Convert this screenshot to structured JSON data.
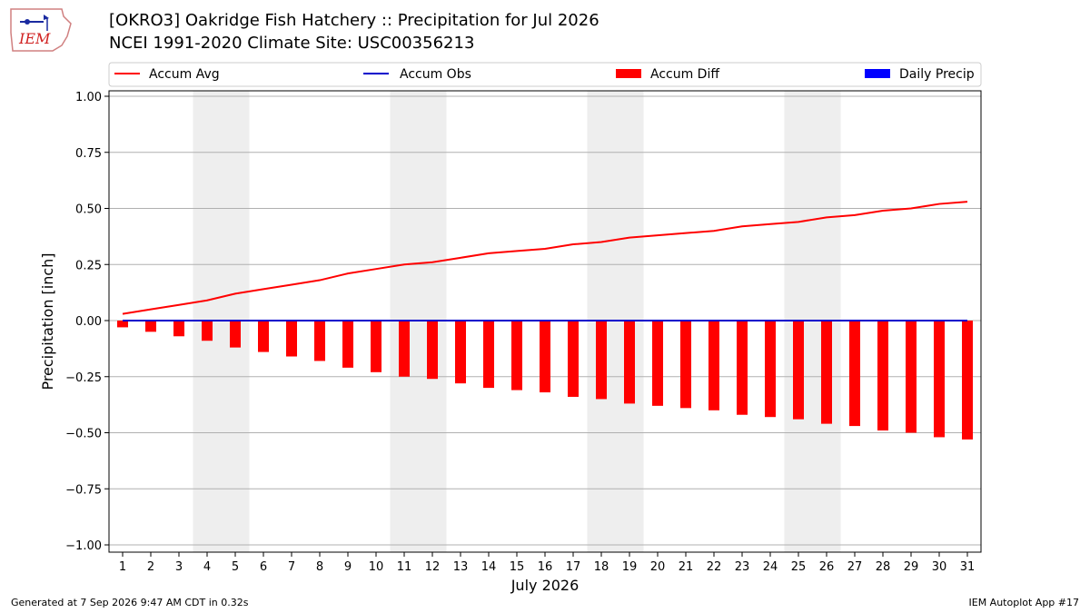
{
  "header": {
    "title_line1": "[OKRO3] Oakridge Fish Hatchery :: Precipitation for Jul 2026",
    "title_line2": "NCEI 1991-2020 Climate Site: USC00356213",
    "logo_text": "IEM"
  },
  "footer": {
    "left": "Generated at 7 Sep 2026 9:47 AM CDT in 0.32s",
    "right": "IEM Autoplot App #17"
  },
  "colors": {
    "accum_avg": "#ff0000",
    "accum_obs": "#0000cc",
    "accum_diff": "#ff0000",
    "daily_precip": "#0000ff",
    "weekend_shade": "#eeeeee",
    "grid": "#b0b0b0"
  },
  "chart_data": {
    "type": "bar",
    "xlabel": "July 2026",
    "ylabel": "Precipitation [inch]",
    "ylim": [
      -1.0,
      1.0
    ],
    "yticks": [
      1.0,
      0.75,
      0.5,
      0.25,
      0.0,
      -0.25,
      -0.5,
      -0.75,
      -1.0
    ],
    "ytick_labels": [
      "1.00",
      "0.75",
      "0.50",
      "0.25",
      "0.00",
      "−0.25",
      "−0.50",
      "−0.75",
      "−1.00"
    ],
    "grid": true,
    "legend_position": "top",
    "categories": [
      "1",
      "2",
      "3",
      "4",
      "5",
      "6",
      "7",
      "8",
      "9",
      "10",
      "11",
      "12",
      "13",
      "14",
      "15",
      "16",
      "17",
      "18",
      "19",
      "20",
      "21",
      "22",
      "23",
      "24",
      "25",
      "26",
      "27",
      "28",
      "29",
      "30",
      "31"
    ],
    "shaded_day_pairs": [
      [
        4,
        5
      ],
      [
        11,
        12
      ],
      [
        18,
        19
      ],
      [
        25,
        26
      ]
    ],
    "series": [
      {
        "name": "Accum Avg",
        "type": "line",
        "values": [
          0.03,
          0.05,
          0.07,
          0.09,
          0.12,
          0.14,
          0.16,
          0.18,
          0.21,
          0.23,
          0.25,
          0.26,
          0.28,
          0.3,
          0.31,
          0.32,
          0.34,
          0.35,
          0.37,
          0.38,
          0.39,
          0.4,
          0.42,
          0.43,
          0.44,
          0.46,
          0.47,
          0.49,
          0.5,
          0.52,
          0.53
        ]
      },
      {
        "name": "Accum Obs",
        "type": "line",
        "values": [
          0,
          0,
          0,
          0,
          0,
          0,
          0,
          0,
          0,
          0,
          0,
          0,
          0,
          0,
          0,
          0,
          0,
          0,
          0,
          0,
          0,
          0,
          0,
          0,
          0,
          0,
          0,
          0,
          0,
          0,
          0
        ]
      },
      {
        "name": "Accum Diff",
        "type": "bar",
        "values": [
          -0.03,
          -0.05,
          -0.07,
          -0.09,
          -0.12,
          -0.14,
          -0.16,
          -0.18,
          -0.21,
          -0.23,
          -0.25,
          -0.26,
          -0.28,
          -0.3,
          -0.31,
          -0.32,
          -0.34,
          -0.35,
          -0.37,
          -0.38,
          -0.39,
          -0.4,
          -0.42,
          -0.43,
          -0.44,
          -0.46,
          -0.47,
          -0.49,
          -0.5,
          -0.52,
          -0.53
        ]
      },
      {
        "name": "Daily Precip",
        "type": "bar",
        "values": [
          0,
          0,
          0,
          0,
          0,
          0,
          0,
          0,
          0,
          0,
          0,
          0,
          0,
          0,
          0,
          0,
          0,
          0,
          0,
          0,
          0,
          0,
          0,
          0,
          0,
          0,
          0,
          0,
          0,
          0,
          0
        ]
      }
    ]
  }
}
